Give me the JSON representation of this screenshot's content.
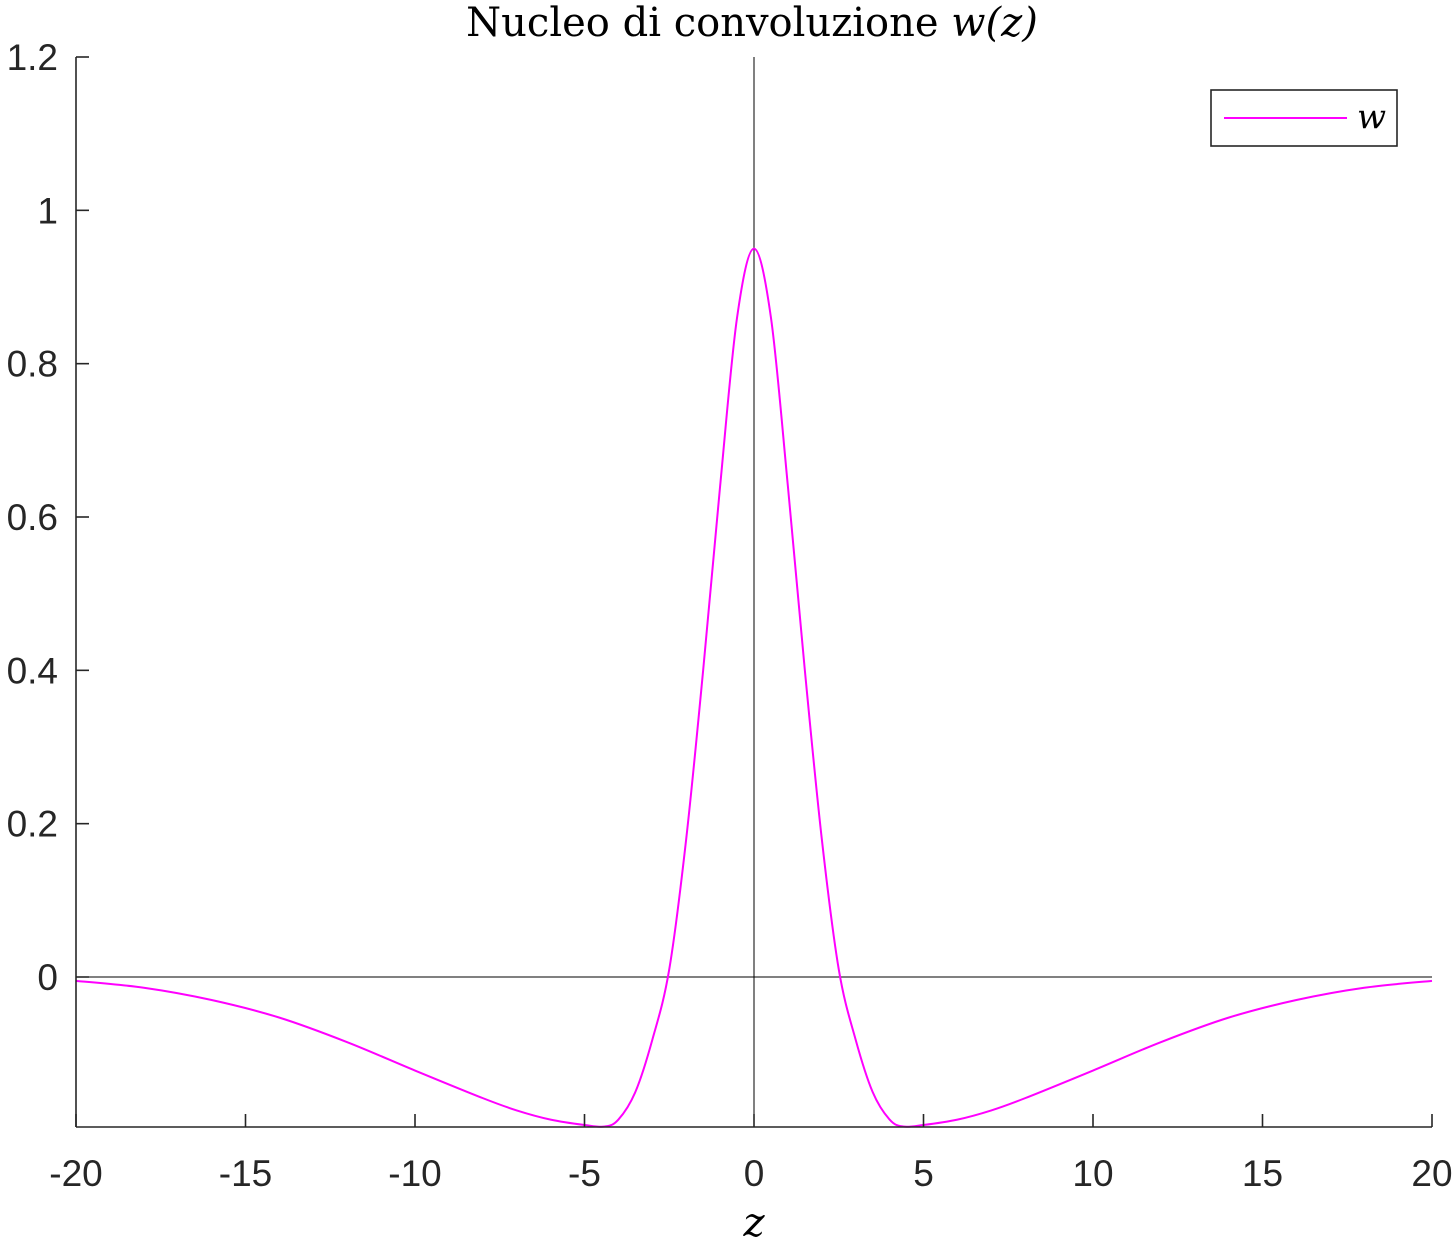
{
  "chart_data": {
    "type": "line",
    "title": "Nucleo di convoluzione w(z)",
    "title_plain": "Nucleo di convoluzione ",
    "title_math": "w(z)",
    "xlabel": "z",
    "ylabel": "",
    "xlim": [
      -20,
      20
    ],
    "ylim": [
      -0.195,
      1.2
    ],
    "xticks": [
      -20,
      -15,
      -10,
      -5,
      0,
      5,
      10,
      15,
      20
    ],
    "xtick_labels": [
      "-20",
      "-15",
      "-10",
      "-5",
      "0",
      "5",
      "10",
      "15",
      "20"
    ],
    "yticks": [
      0,
      0.2,
      0.4,
      0.6,
      0.8,
      1,
      1.2
    ],
    "ytick_labels": [
      "0",
      "0.2",
      "0.4",
      "0.6",
      "0.8",
      "1",
      "1.2"
    ],
    "grid": false,
    "reference_lines": {
      "x0": true,
      "y0": true
    },
    "legend": {
      "position": "top-right",
      "entries": [
        "w"
      ]
    },
    "series": [
      {
        "name": "w",
        "color": "#ff00ff",
        "x": [
          -20,
          -18,
          -16,
          -14,
          -12,
          -10,
          -8,
          -7,
          -6,
          -5,
          -4.4,
          -4,
          -3.5,
          -3,
          -2.5,
          -2,
          -1.5,
          -1,
          -0.5,
          0,
          0.5,
          1,
          1.5,
          2,
          2.5,
          3,
          3.5,
          4,
          4.4,
          5,
          6,
          7,
          8,
          10,
          12,
          14,
          16,
          18,
          20
        ],
        "y": [
          -0.005,
          -0.014,
          -0.03,
          -0.053,
          -0.085,
          -0.122,
          -0.158,
          -0.174,
          -0.186,
          -0.193,
          -0.195,
          -0.186,
          -0.15,
          -0.082,
          0.01,
          0.18,
          0.4,
          0.64,
          0.86,
          0.95,
          0.86,
          0.64,
          0.4,
          0.18,
          0.01,
          -0.082,
          -0.15,
          -0.186,
          -0.195,
          -0.193,
          -0.186,
          -0.174,
          -0.158,
          -0.122,
          -0.085,
          -0.053,
          -0.03,
          -0.014,
          -0.005
        ]
      }
    ]
  }
}
